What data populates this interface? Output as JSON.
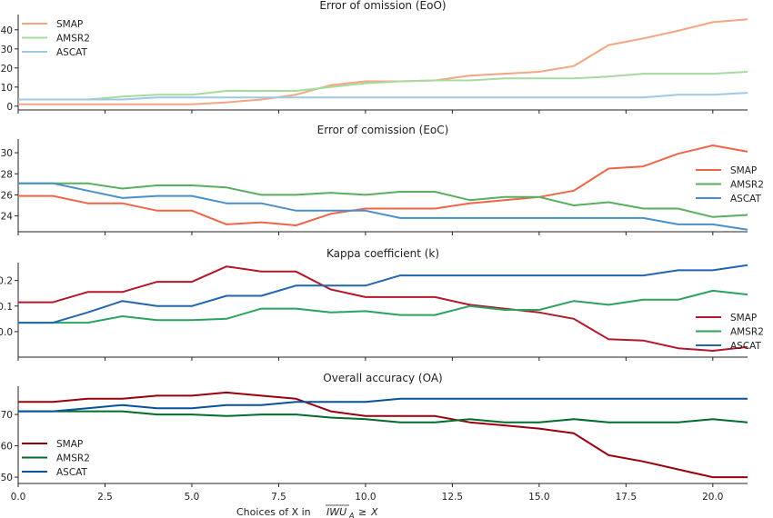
{
  "figure": {
    "xlabel": "Choices of X in IWU_A ≥ X",
    "xticks": [
      0.0,
      2.5,
      5.0,
      7.5,
      10.0,
      12.5,
      15.0,
      17.5,
      20.0
    ],
    "xtick_labels": [
      "0.0",
      "2.5",
      "5.0",
      "7.5",
      "10.0",
      "12.5",
      "15.0",
      "17.5",
      "20.0"
    ],
    "xlim": [
      0,
      21
    ]
  },
  "chart_data": [
    {
      "type": "line",
      "title": "Error of omission (EoO)",
      "x": [
        0,
        1,
        2,
        3,
        4,
        5,
        6,
        7,
        8,
        9,
        10,
        11,
        12,
        13,
        14,
        15,
        16,
        17,
        18,
        19,
        20,
        21
      ],
      "ylim": [
        -2,
        48
      ],
      "yticks": [
        0,
        10,
        20,
        30,
        40
      ],
      "legend_position": "top-left",
      "series": [
        {
          "name": "SMAP",
          "color": "#f4a582",
          "values": [
            1,
            1,
            1,
            1,
            1,
            1,
            2,
            3.5,
            6,
            11,
            13,
            13,
            13.5,
            16,
            17,
            18,
            21,
            32,
            35.5,
            39.5,
            44,
            45.5
          ]
        },
        {
          "name": "AMSR2",
          "color": "#a6dba0",
          "values": [
            3.5,
            3.5,
            3.5,
            5,
            6,
            6,
            8,
            8,
            8,
            10,
            12,
            13,
            13.5,
            13.5,
            14.5,
            14.5,
            14.5,
            15.5,
            17,
            17,
            17,
            18
          ]
        },
        {
          "name": "ASCAT",
          "color": "#9ecae1",
          "values": [
            3.5,
            3.5,
            3.5,
            3.5,
            4.5,
            4.5,
            4.5,
            4.5,
            4.5,
            4.5,
            4.5,
            4.5,
            4.5,
            4.5,
            4.5,
            4.5,
            4.5,
            4.5,
            4.5,
            6,
            6,
            7
          ]
        }
      ]
    },
    {
      "type": "line",
      "title": "Error of comission (EoC)",
      "x": [
        0,
        1,
        2,
        3,
        4,
        5,
        6,
        7,
        8,
        9,
        10,
        11,
        12,
        13,
        14,
        15,
        16,
        17,
        18,
        19,
        20,
        21
      ],
      "ylim": [
        22.5,
        31.3
      ],
      "yticks": [
        24,
        26,
        28,
        30
      ],
      "legend_position": "right",
      "series": [
        {
          "name": "SMAP",
          "color": "#ef6548",
          "values": [
            25.9,
            25.9,
            25.2,
            25.2,
            24.5,
            24.5,
            23.2,
            23.4,
            23.1,
            24.2,
            24.7,
            24.7,
            24.7,
            25.2,
            25.5,
            25.8,
            26.4,
            28.5,
            28.7,
            29.9,
            30.7,
            30.1
          ]
        },
        {
          "name": "AMSR2",
          "color": "#5aae61",
          "values": [
            27.1,
            27.1,
            27.1,
            26.6,
            26.9,
            26.9,
            26.7,
            26.0,
            26.0,
            26.2,
            26.0,
            26.3,
            26.3,
            25.5,
            25.8,
            25.8,
            25.0,
            25.3,
            24.7,
            24.7,
            23.9,
            24.1
          ]
        },
        {
          "name": "ASCAT",
          "color": "#4a90c8",
          "values": [
            27.1,
            27.1,
            26.4,
            25.7,
            25.9,
            25.9,
            25.2,
            25.2,
            24.5,
            24.5,
            24.5,
            23.8,
            23.8,
            23.8,
            23.8,
            23.8,
            23.8,
            23.8,
            23.8,
            23.2,
            23.2,
            22.7
          ]
        }
      ]
    },
    {
      "type": "line",
      "title": "Kappa coefficient (k)",
      "x": [
        0,
        1,
        2,
        3,
        4,
        5,
        6,
        7,
        8,
        9,
        10,
        11,
        12,
        13,
        14,
        15,
        16,
        17,
        18,
        19,
        20,
        21
      ],
      "ylim": [
        -0.1,
        0.27
      ],
      "yticks": [
        0.0,
        0.1,
        0.2
      ],
      "ytick_labels": [
        "0.0",
        "0.1",
        "0.2"
      ],
      "legend_position": "right",
      "series": [
        {
          "name": "SMAP",
          "color": "#b2182b",
          "values": [
            0.115,
            0.115,
            0.155,
            0.155,
            0.195,
            0.195,
            0.255,
            0.235,
            0.235,
            0.165,
            0.135,
            0.135,
            0.135,
            0.105,
            0.09,
            0.075,
            0.05,
            -0.03,
            -0.035,
            -0.065,
            -0.075,
            -0.06
          ]
        },
        {
          "name": "AMSR2",
          "color": "#2ca25f",
          "values": [
            0.035,
            0.035,
            0.035,
            0.06,
            0.045,
            0.045,
            0.05,
            0.09,
            0.09,
            0.075,
            0.08,
            0.065,
            0.065,
            0.1,
            0.085,
            0.085,
            0.12,
            0.105,
            0.125,
            0.125,
            0.16,
            0.145
          ]
        },
        {
          "name": "ASCAT",
          "color": "#2166ac",
          "values": [
            0.035,
            0.035,
            0.075,
            0.12,
            0.1,
            0.1,
            0.14,
            0.14,
            0.18,
            0.18,
            0.18,
            0.22,
            0.22,
            0.22,
            0.22,
            0.22,
            0.22,
            0.22,
            0.22,
            0.24,
            0.24,
            0.26
          ]
        }
      ]
    },
    {
      "type": "line",
      "title": "Overall accuracy (OA)",
      "x": [
        0,
        1,
        2,
        3,
        4,
        5,
        6,
        7,
        8,
        9,
        10,
        11,
        12,
        13,
        14,
        15,
        16,
        17,
        18,
        19,
        20,
        21
      ],
      "ylim": [
        48,
        79
      ],
      "yticks": [
        50,
        60,
        70
      ],
      "legend_position": "left",
      "series": [
        {
          "name": "SMAP",
          "color": "#99000d",
          "values": [
            74,
            74,
            75,
            75,
            76,
            76,
            77,
            76,
            75,
            71,
            69.5,
            69.5,
            69.5,
            67.5,
            66.5,
            65.5,
            64,
            57,
            55,
            52.5,
            50,
            50
          ]
        },
        {
          "name": "AMSR2",
          "color": "#006d2c",
          "values": [
            71,
            71,
            71,
            71,
            70,
            70,
            69.5,
            70,
            70,
            69,
            68.5,
            67.5,
            67.5,
            68.5,
            67.5,
            67.5,
            68.5,
            67.5,
            67.5,
            67.5,
            68.5,
            67.5
          ]
        },
        {
          "name": "ASCAT",
          "color": "#08519c",
          "values": [
            71,
            71,
            72,
            73,
            72,
            72,
            73,
            73,
            74,
            74,
            74,
            75,
            75,
            75,
            75,
            75,
            75,
            75,
            75,
            75,
            75,
            75
          ]
        }
      ]
    }
  ]
}
